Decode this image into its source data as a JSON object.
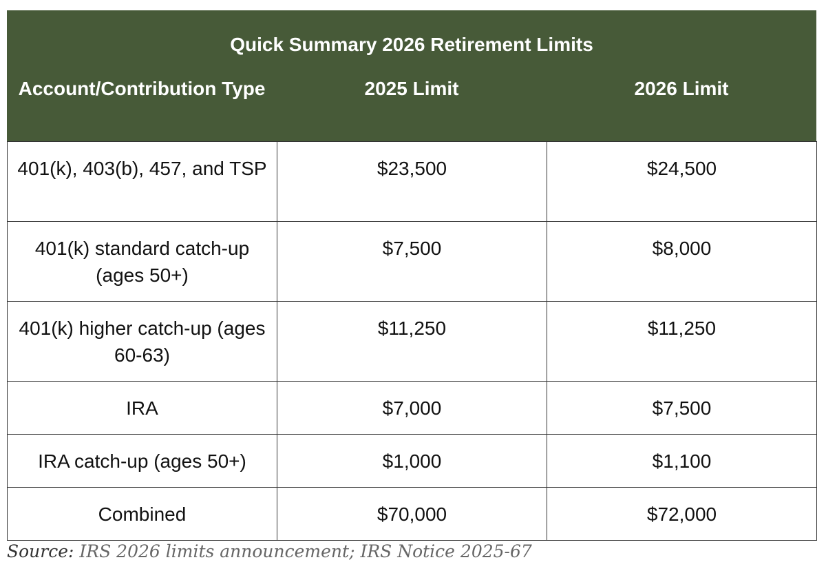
{
  "title": "Quick Summary 2026 Retirement Limits",
  "columns": [
    "Account/Contribution Type",
    "2025 Limit",
    "2026 Limit"
  ],
  "rows": [
    {
      "type": "401(k), 403(b), 457, and TSP",
      "limit_2025": "$23,500",
      "limit_2026": "$24,500"
    },
    {
      "type": "401(k) standard catch-up (ages 50+)",
      "limit_2025": "$7,500",
      "limit_2026": "$8,000"
    },
    {
      "type": "401(k) higher catch-up (ages 60-63)",
      "limit_2025": "$11,250",
      "limit_2026": "$11,250"
    },
    {
      "type": "IRA",
      "limit_2025": "$7,000",
      "limit_2026": "$7,500"
    },
    {
      "type": "IRA catch-up (ages 50+)",
      "limit_2025": "$1,000",
      "limit_2026": "$1,100"
    },
    {
      "type": "Combined",
      "limit_2025": "$70,000",
      "limit_2026": "$72,000"
    }
  ],
  "source": {
    "label": "Source:",
    "text": "IRS 2026 limits announcement; IRS Notice 2025-67"
  },
  "colors": {
    "header_bg": "#475a38",
    "header_text": "#ffffff",
    "border": "#333333"
  }
}
